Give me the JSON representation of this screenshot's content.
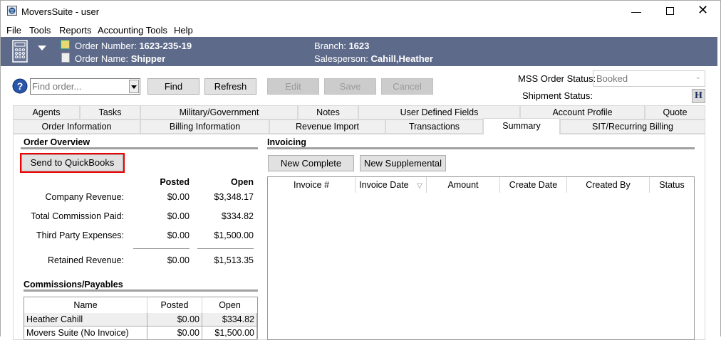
{
  "window": {
    "title": "MoversSuite - user",
    "icon": "app-globe-icon",
    "controls": [
      "minimize",
      "maximize",
      "close"
    ]
  },
  "menu": [
    "File",
    "Tools",
    "Reports",
    "Accounting Tools",
    "Help"
  ],
  "header": {
    "order_number_label": "Order Number:",
    "order_number": "1623-235-19",
    "order_name_label": "Order Name:",
    "order_name": "Shipper",
    "branch_label": "Branch:",
    "branch": "1623",
    "salesperson_label": "Salesperson:",
    "salesperson": "Cahill,Heather"
  },
  "toolbar": {
    "find_placeholder": "Find order...",
    "find": "Find",
    "refresh": "Refresh",
    "edit": "Edit",
    "save": "Save",
    "cancel": "Cancel",
    "mss_status_label": "MSS Order Status:",
    "mss_status": "Booked",
    "shipment_status_label": "Shipment Status:",
    "h_button": "H"
  },
  "tabs_row1": [
    "Agents",
    "Tasks",
    "Military/Government",
    "Notes",
    "User Defined Fields",
    "Account Profile",
    "Quote"
  ],
  "tabs_row2": [
    "Order Information",
    "Billing Information",
    "Revenue Import",
    "Transactions",
    "Summary",
    "SIT/Recurring Billing"
  ],
  "selected_tab": "Summary",
  "overview": {
    "title": "Order Overview",
    "send_button": "Send to QuickBooks",
    "col_posted": "Posted",
    "col_open": "Open",
    "rows": [
      {
        "label": "Company Revenue:",
        "posted": "$0.00",
        "open": "$3,348.17"
      },
      {
        "label": "Total Commission Paid:",
        "posted": "$0.00",
        "open": "$334.82"
      },
      {
        "label": "Third Party Expenses:",
        "posted": "$0.00",
        "open": "$1,500.00"
      },
      {
        "label": "Retained Revenue:",
        "posted": "$0.00",
        "open": "$1,513.35"
      }
    ]
  },
  "commissions": {
    "title": "Commissions/Payables",
    "columns": [
      "Name",
      "Posted",
      "Open"
    ],
    "rows": [
      [
        "Heather Cahill",
        "$0.00",
        "$334.82"
      ],
      [
        "Movers Suite (No Invoice)",
        "$0.00",
        "$1,500.00"
      ]
    ]
  },
  "invoicing": {
    "title": "Invoicing",
    "new_complete": "New Complete",
    "new_supplemental": "New Supplemental",
    "columns": [
      "Invoice #",
      "Invoice Date",
      "Amount",
      "Create Date",
      "Created By",
      "Status"
    ],
    "rows": []
  },
  "colors": {
    "header_band": "#5d6a8a",
    "highlight": "#e81123"
  }
}
